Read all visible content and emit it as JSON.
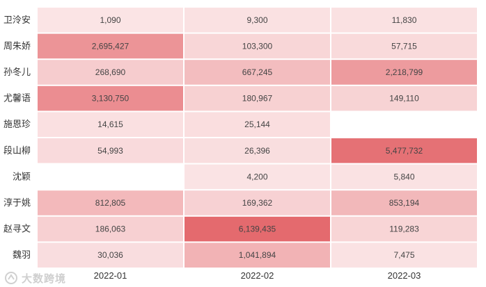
{
  "chart_data": {
    "type": "heatmap",
    "rows": [
      "卫泠安",
      "周朱娇",
      "孙冬儿",
      "尤馨语",
      "施恩珍",
      "段山柳",
      "沈颖",
      "淳于姚",
      "赵寻文",
      "魏羽"
    ],
    "columns": [
      "2022-01",
      "2022-02",
      "2022-03"
    ],
    "values": [
      [
        1090,
        9300,
        11830
      ],
      [
        2695427,
        103300,
        57715
      ],
      [
        268690,
        667245,
        2218799
      ],
      [
        3130750,
        180967,
        149110
      ],
      [
        14615,
        25144,
        null
      ],
      [
        54993,
        26396,
        5477732
      ],
      [
        null,
        4200,
        5840
      ],
      [
        812805,
        169362,
        853194
      ],
      [
        186063,
        6139435,
        119283
      ],
      [
        30036,
        1041894,
        7475
      ]
    ],
    "labels": [
      [
        "1,090",
        "9,300",
        "11,830"
      ],
      [
        "2,695,427",
        "103,300",
        "57,715"
      ],
      [
        "268,690",
        "667,245",
        "2,218,799"
      ],
      [
        "3,130,750",
        "180,967",
        "149,110"
      ],
      [
        "14,615",
        "25,144",
        ""
      ],
      [
        "54,993",
        "26,396",
        "5,477,732"
      ],
      [
        "",
        "4,200",
        "5,840"
      ],
      [
        "812,805",
        "169,362",
        "853,194"
      ],
      [
        "186,063",
        "6,139,435",
        "119,283"
      ],
      [
        "30,036",
        "1,041,894",
        "7,475"
      ]
    ],
    "color_min": "#fbe6e7",
    "color_max": "#e46a6e",
    "empty_color": "#ffffff"
  },
  "watermark": {
    "text": "大数跨境",
    "icon": "logo-icon"
  }
}
